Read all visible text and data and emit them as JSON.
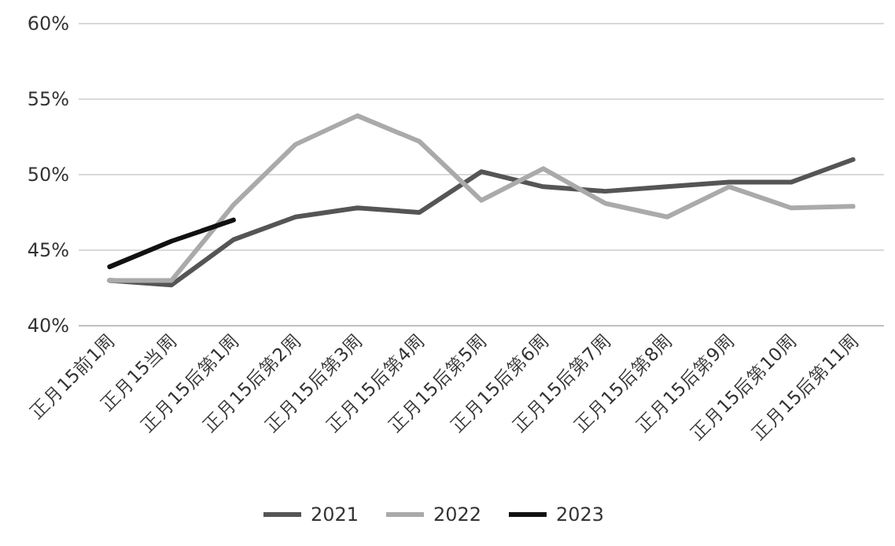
{
  "chart_data": {
    "type": "line",
    "categories": [
      "正月15前1周",
      "正月15当周",
      "正月15后第1周",
      "正月15后第2周",
      "正月15后第3周",
      "正月15后第4周",
      "正月15后第5周",
      "正月15后第6周",
      "正月15后第7周",
      "正月15后第8周",
      "正月15后第9周",
      "正月15后第10周",
      "正月15后第11周"
    ],
    "series": [
      {
        "name": "2021",
        "color": "#555555",
        "values": [
          43.0,
          42.7,
          45.7,
          47.2,
          47.8,
          47.5,
          50.2,
          49.2,
          48.9,
          49.2,
          49.5,
          49.5,
          51.0
        ]
      },
      {
        "name": "2022",
        "color": "#aaaaaa",
        "values": [
          43.0,
          43.0,
          48.0,
          52.0,
          53.9,
          52.2,
          48.3,
          50.4,
          48.1,
          47.2,
          49.2,
          47.8,
          47.9
        ]
      },
      {
        "name": "2023",
        "color": "#111111",
        "values": [
          43.9,
          45.6,
          47.0,
          null,
          null,
          null,
          null,
          null,
          null,
          null,
          null,
          null,
          null
        ]
      }
    ],
    "ylim": [
      40,
      60
    ],
    "yticks": [
      {
        "value": 40,
        "label": "40%"
      },
      {
        "value": 45,
        "label": "45%"
      },
      {
        "value": 50,
        "label": "50%"
      },
      {
        "value": 55,
        "label": "55%"
      },
      {
        "value": 60,
        "label": "60%"
      }
    ],
    "grid": "y",
    "legend": "bottom",
    "marker": "none",
    "line_style": "solid"
  }
}
